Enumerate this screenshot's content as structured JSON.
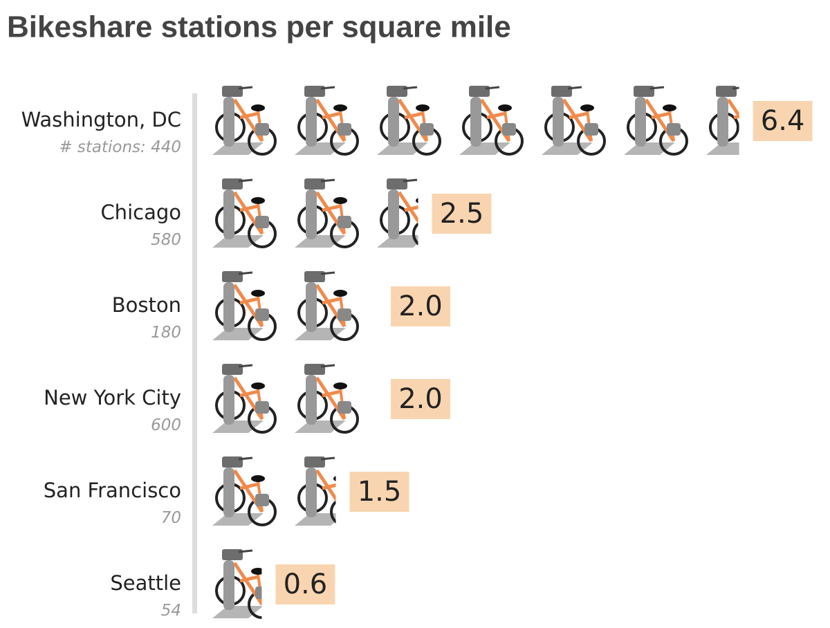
{
  "chart_data": {
    "type": "pictogram",
    "title": "Bikeshare stations per square mile",
    "categories": [
      "Washington, DC",
      "Chicago",
      "Boston",
      "New York City",
      "San Francisco",
      "Seattle"
    ],
    "values": [
      6.4,
      2.5,
      2,
      2,
      1.5,
      0.6
    ],
    "value_labels": [
      "6.4",
      "2.5",
      "2.0",
      "2.0",
      "1.5",
      "0.6"
    ],
    "stations_label": "# stations:",
    "stations": [
      440,
      580,
      180,
      600,
      70,
      54
    ],
    "color": "#f08a4b",
    "label_color": "#f8d5b0"
  }
}
